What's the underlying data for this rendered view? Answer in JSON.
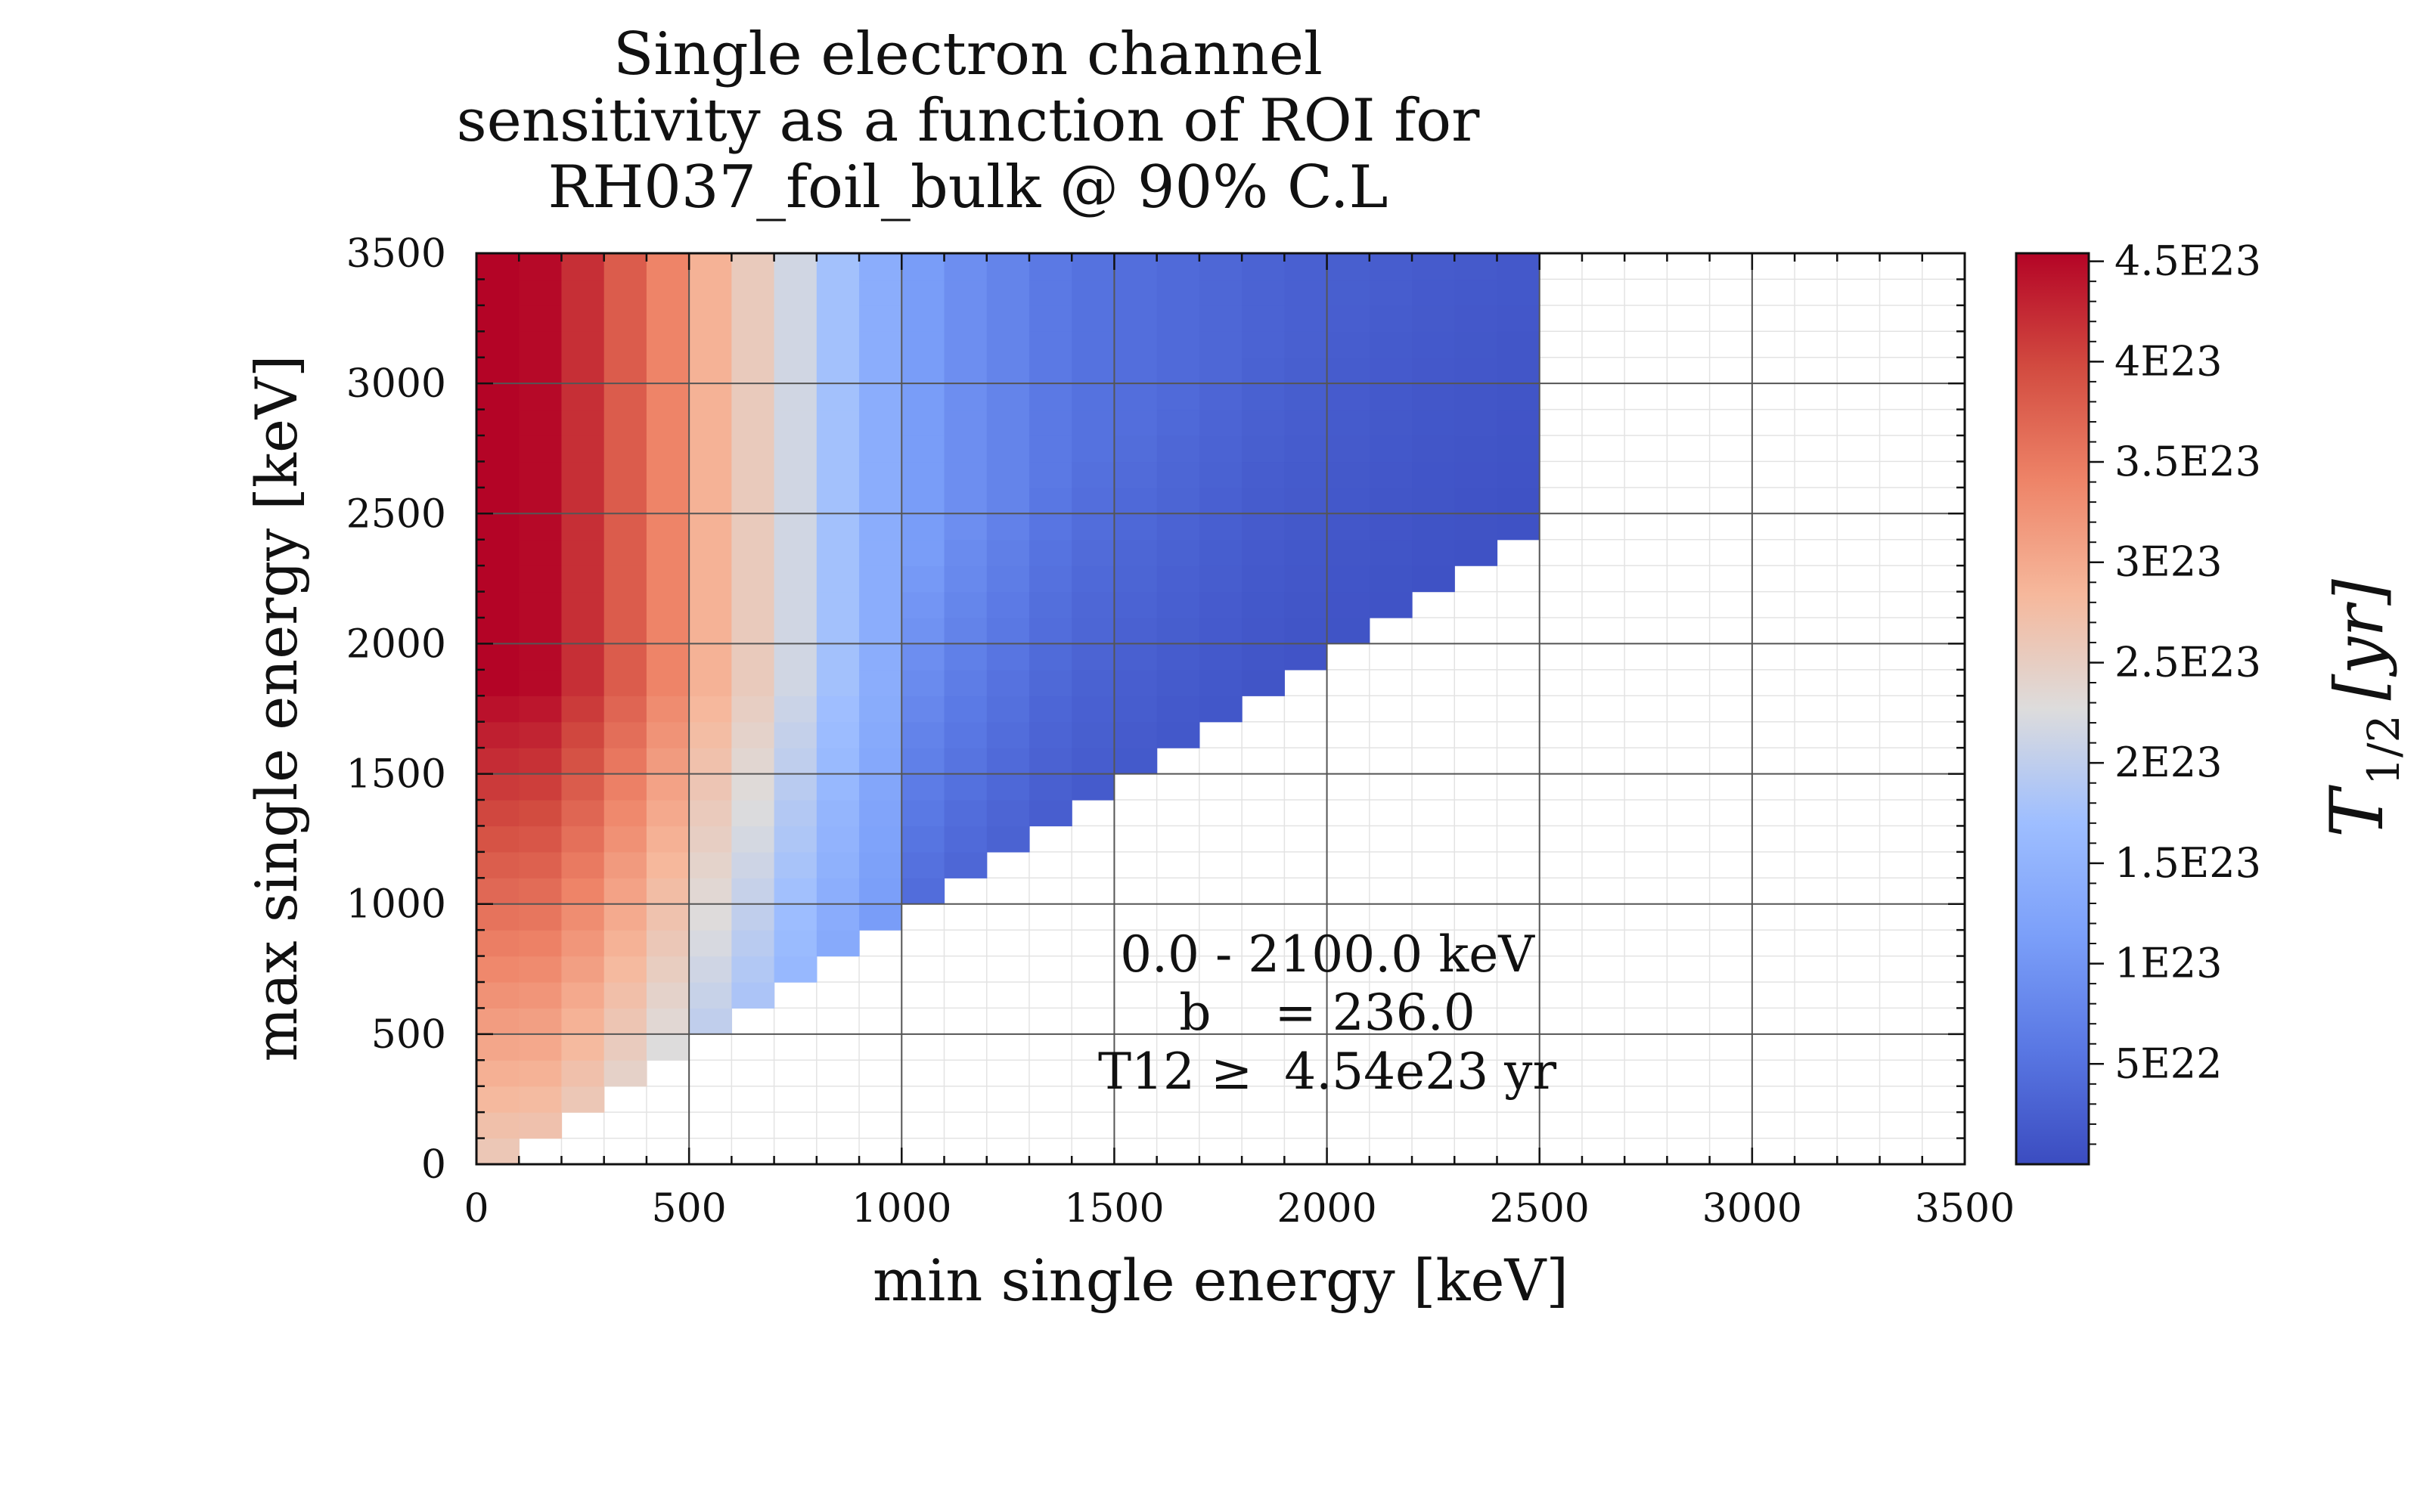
{
  "chart_data": {
    "type": "heatmap",
    "title_lines": [
      "Single electron channel",
      "sensitivity as a function of ROI for",
      "RH037_foil_bulk @ 90% C.L"
    ],
    "xlabel": "min single energy [keV]",
    "ylabel": "max single energy [keV]",
    "xlim": [
      0,
      3500
    ],
    "ylim": [
      0,
      3500
    ],
    "bin_width": 100,
    "x_ticks": [
      "0",
      "500",
      "1000",
      "1500",
      "2000",
      "2500",
      "3000",
      "3500"
    ],
    "y_ticks": [
      "0",
      "500",
      "1000",
      "1500",
      "2000",
      "2500",
      "3000",
      "3500"
    ],
    "grid": true,
    "colormap": "coolwarm",
    "colorbar": {
      "range": [
        0,
        4.54e+23
      ],
      "tick_values": [
        5e+22,
        1e+23,
        1.5e+23,
        2e+23,
        2.5e+23,
        3e+23,
        3.5e+23,
        4e+23,
        4.5e+23
      ],
      "tick_labels": [
        "5E22",
        "1E23",
        "1.5E23",
        "2E23",
        "2.5E23",
        "3E23",
        "3.5E23",
        "4E23",
        "4.5E23"
      ],
      "label_main": "T",
      "label_sub": "1/2",
      "label_unit": "[yr]"
    },
    "filled_region": {
      "x_max": 2500,
      "y_max": 3500,
      "description_rule": "cells with min energy below max energy and min energy below 2500 keV"
    },
    "column_values_at_top": [
      4.54e+23,
      4.5e+23,
      4.2e+23,
      3.8e+23,
      3.4e+23,
      2.9e+23,
      2.55e+23,
      2.15e+23,
      1.75e+23,
      1.4e+23,
      1.1e+23,
      9e+22,
      7.5e+22,
      6e+22,
      5e+22,
      4.5e+22,
      4e+22,
      3.5e+22,
      3e+22,
      2.7e+22,
      2.5e+22,
      2.3e+22,
      2.1e+22,
      2e+22,
      1.9e+22
    ],
    "annotations": [
      "0.0 - 2100.0 keV",
      "b    = 236.0",
      "T12 ≥  4.54e23 yr"
    ]
  }
}
